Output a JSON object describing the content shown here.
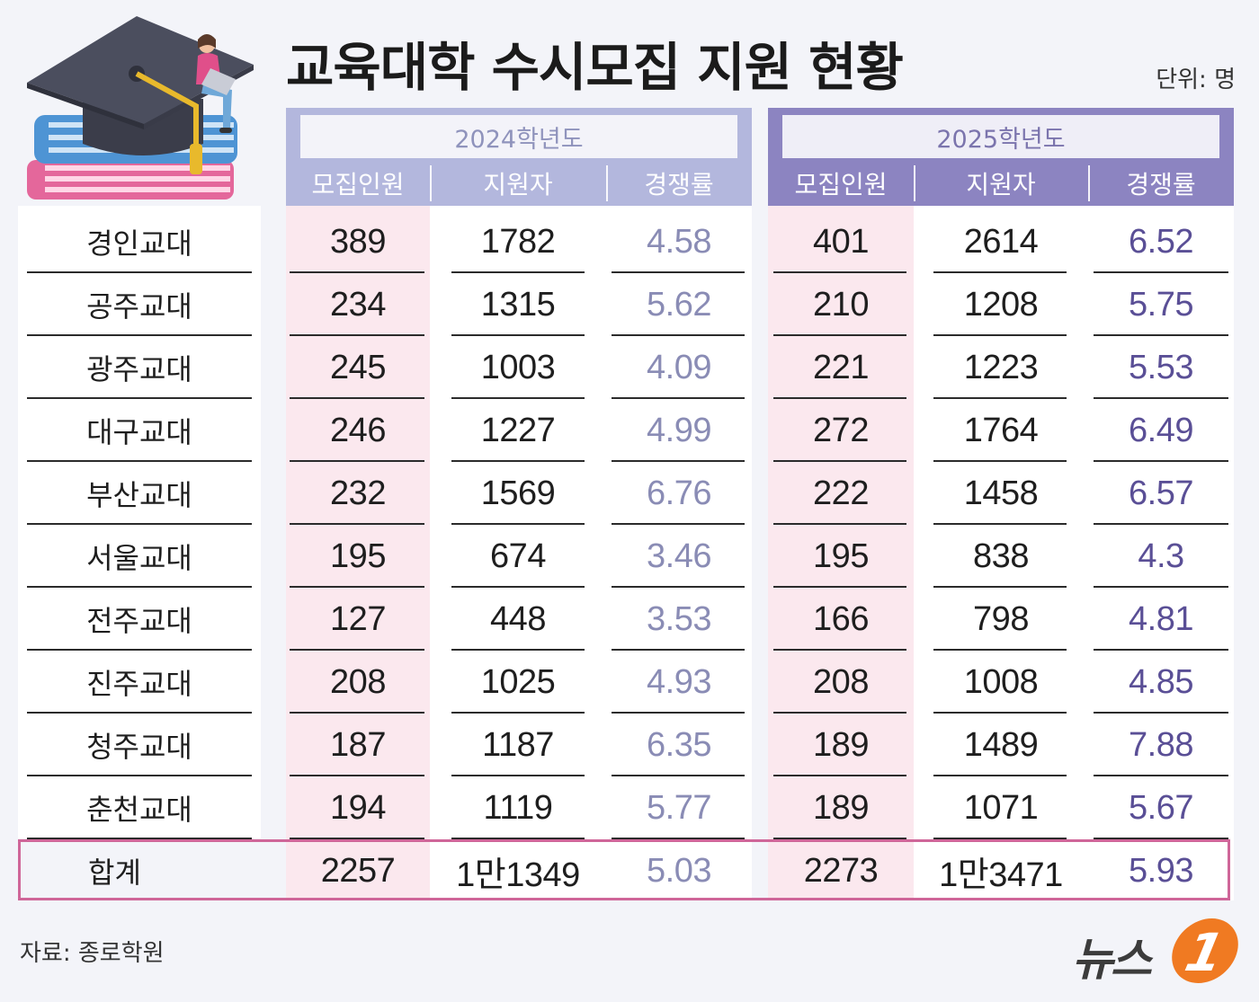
{
  "title": "교육대학 수시모집 지원 현황",
  "unit": "단위: 명",
  "source": "자료: 종로학원",
  "logo": {
    "text": "뉴스",
    "badge": "1"
  },
  "colors": {
    "header_2024": "#b3b7dd",
    "header_2025": "#8c84c1",
    "pink_column": "#fbe8ee",
    "ratio_2024": "#8a8cb5",
    "ratio_2025": "#5a4f96",
    "total_border": "#cf6699"
  },
  "chart_data": {
    "type": "table",
    "groups": [
      {
        "label": "2024학년도",
        "columns": [
          "모집인원",
          "지원자",
          "경쟁률"
        ]
      },
      {
        "label": "2025학년도",
        "columns": [
          "모집인원",
          "지원자",
          "경쟁률"
        ]
      }
    ],
    "rows": [
      {
        "name": "경인교대",
        "y2024": [
          "389",
          "1782",
          "4.58"
        ],
        "y2025": [
          "401",
          "2614",
          "6.52"
        ]
      },
      {
        "name": "공주교대",
        "y2024": [
          "234",
          "1315",
          "5.62"
        ],
        "y2025": [
          "210",
          "1208",
          "5.75"
        ]
      },
      {
        "name": "광주교대",
        "y2024": [
          "245",
          "1003",
          "4.09"
        ],
        "y2025": [
          "221",
          "1223",
          "5.53"
        ]
      },
      {
        "name": "대구교대",
        "y2024": [
          "246",
          "1227",
          "4.99"
        ],
        "y2025": [
          "272",
          "1764",
          "6.49"
        ]
      },
      {
        "name": "부산교대",
        "y2024": [
          "232",
          "1569",
          "6.76"
        ],
        "y2025": [
          "222",
          "1458",
          "6.57"
        ]
      },
      {
        "name": "서울교대",
        "y2024": [
          "195",
          "674",
          "3.46"
        ],
        "y2025": [
          "195",
          "838",
          "4.3"
        ]
      },
      {
        "name": "전주교대",
        "y2024": [
          "127",
          "448",
          "3.53"
        ],
        "y2025": [
          "166",
          "798",
          "4.81"
        ]
      },
      {
        "name": "진주교대",
        "y2024": [
          "208",
          "1025",
          "4.93"
        ],
        "y2025": [
          "208",
          "1008",
          "4.85"
        ]
      },
      {
        "name": "청주교대",
        "y2024": [
          "187",
          "1187",
          "6.35"
        ],
        "y2025": [
          "189",
          "1489",
          "7.88"
        ]
      },
      {
        "name": "춘천교대",
        "y2024": [
          "194",
          "1119",
          "5.77"
        ],
        "y2025": [
          "189",
          "1071",
          "5.67"
        ]
      }
    ],
    "total": {
      "name": "합계",
      "y2024": [
        "2257",
        "1만1349",
        "5.03"
      ],
      "y2025": [
        "2273",
        "1만3471",
        "5.93"
      ]
    }
  }
}
